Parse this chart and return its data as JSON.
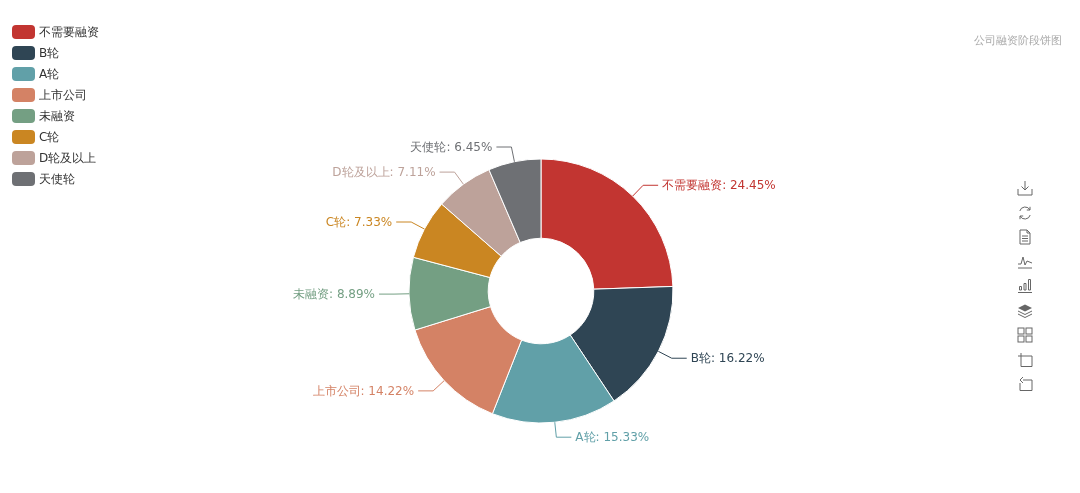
{
  "chart_data": {
    "type": "donut",
    "title": "公司融资阶段饼图",
    "categories": [
      "不需要融资",
      "B轮",
      "A轮",
      "上市公司",
      "未融资",
      "C轮",
      "D轮及以上",
      "天使轮"
    ],
    "values": [
      24.45,
      16.22,
      15.33,
      14.22,
      8.89,
      7.33,
      7.11,
      6.45
    ],
    "colors": [
      "#c23531",
      "#2f4554",
      "#61a0a8",
      "#d48265",
      "#749f83",
      "#ca8622",
      "#bda29a",
      "#6e7074"
    ],
    "value_labels": [
      "不需要融资: 24.45%",
      "B轮: 16.22%",
      "A轮: 15.33%",
      "上市公司: 14.22%",
      "未融资: 8.89%",
      "C轮: 7.33%",
      "D轮及以上: 7.11%",
      "天使轮: 6.45%"
    ],
    "legend": "top left"
  }
}
